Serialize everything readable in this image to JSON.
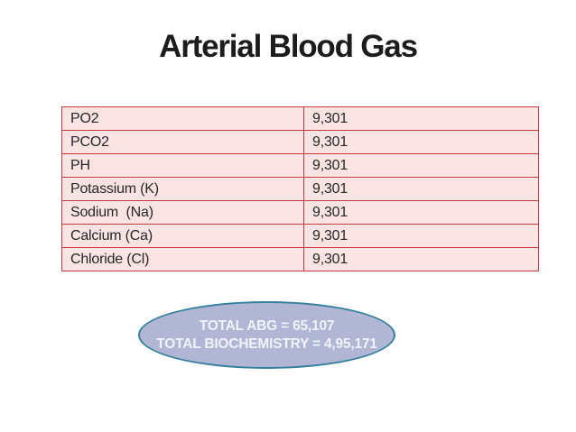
{
  "slide": {
    "title": "Arterial Blood Gas",
    "table": {
      "rows": [
        {
          "label": "PO2",
          "value": "9,301"
        },
        {
          "label": "PCO2",
          "value": "9,301"
        },
        {
          "label": "PH",
          "value": "9,301"
        },
        {
          "label": "Potassium (K)",
          "value": "9,301"
        },
        {
          "label": "Sodium  (Na)",
          "value": "9,301"
        },
        {
          "label": "Calcium (Ca)",
          "value": "9,301"
        },
        {
          "label": "Chloride (Cl)",
          "value": "9,301"
        }
      ]
    },
    "summary_ellipse": {
      "line1": "TOTAL ABG = 65,107",
      "line2": "TOTAL BIOCHEMISTRY = 4,95,171"
    },
    "colors": {
      "title_text": "#1c1c1c",
      "cell_text": "#272727",
      "table_border": "#c33b3d",
      "table_fill": "#f9e3e3",
      "ellipse_fill": "#b0b6d3",
      "ellipse_border": "#36809b",
      "ellipse_text": "#f2f3f8"
    }
  }
}
